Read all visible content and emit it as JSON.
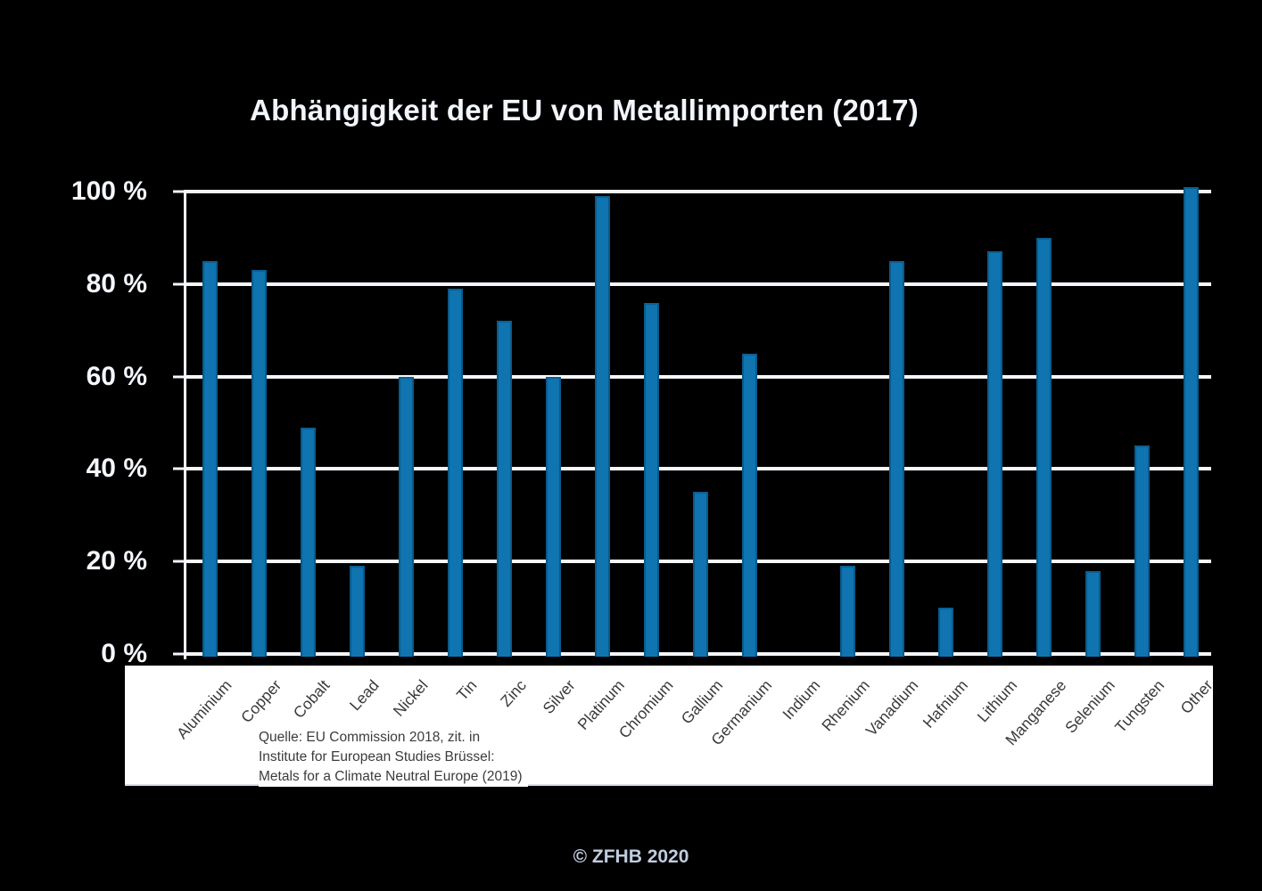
{
  "page": {
    "background": "#000000",
    "copyright": "© ZFHB 2020"
  },
  "source_note": {
    "line1": "Quelle: EU Commission 2018, zit. in",
    "line2": "Institute for European Studies Brüssel:",
    "line3": "Metals for a Climate Neutral Europe (2019)"
  },
  "chart_data": {
    "type": "bar",
    "title": "Abhängigkeit der EU von Metallimporten (2017)",
    "categories": [
      "Aluminium",
      "Copper",
      "Cobalt",
      "Lead",
      "Nickel",
      "Tin",
      "Zinc",
      "Silver",
      "Platinum",
      "Chromium",
      "Gallium",
      "Germanium",
      "Indium",
      "Rhenium",
      "Vanadium",
      "Hafnium",
      "Lithium",
      "Manganese",
      "Selenium",
      "Tungsten",
      "Other"
    ],
    "values": [
      85,
      83,
      49,
      19,
      60,
      79,
      72,
      60,
      99,
      76,
      35,
      65,
      0,
      19,
      85,
      10,
      87,
      90,
      18,
      45,
      101
    ],
    "xlabel": "",
    "ylabel": "",
    "ylim": [
      0,
      100
    ],
    "ytick_values": [
      0,
      20,
      40,
      60,
      80,
      100
    ],
    "ytick_labels": [
      "0 %",
      "20 %",
      "40 %",
      "60 %",
      "80 %",
      "100 %"
    ],
    "grid": true,
    "legend": "none",
    "bar_color": "#0f74b0",
    "bar_edge_color": "#0a5a8a",
    "gridline_color": "#f4f7fb",
    "y_label_color": "#f4f7fd",
    "x_label_color": "#3a3a3a",
    "label_strip_color": "#ffffff"
  }
}
